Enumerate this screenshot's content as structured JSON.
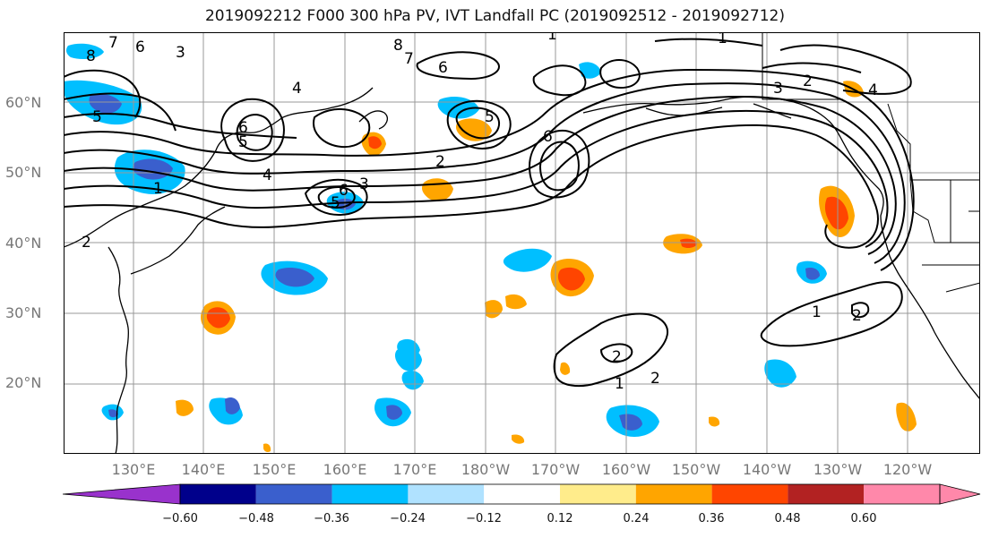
{
  "title": "2019092212 F000 300 hPa PV, IVT Landfall PC (2019092512 - 2019092712)",
  "lat_labels": [
    "20°N",
    "30°N",
    "40°N",
    "50°N",
    "60°N"
  ],
  "lon_labels": [
    "130°E",
    "140°E",
    "150°E",
    "160°E",
    "170°E",
    "180°W",
    "170°W",
    "160°W",
    "150°W",
    "140°W",
    "130°W",
    "120°W"
  ],
  "colorbar": {
    "colors": [
      "#9932CC",
      "#00008B",
      "#3A5FCD",
      "#00BFFF",
      "#B0E2FF",
      "#FFFFFF",
      "#FFEC8B",
      "#FFA500",
      "#FF4500",
      "#B22222",
      "#FF88AA"
    ],
    "ticks": [
      "−0.60",
      "−0.48",
      "−0.36",
      "−0.24",
      "−0.12",
      "0.12",
      "0.24",
      "0.36",
      "0.48",
      "0.60"
    ]
  },
  "contour_labels": [
    {
      "text": "7"
    },
    {
      "text": "8"
    },
    {
      "text": "6"
    },
    {
      "text": "5"
    },
    {
      "text": "4"
    },
    {
      "text": "3"
    },
    {
      "text": "2"
    },
    {
      "text": "1"
    },
    {
      "text": "5"
    },
    {
      "text": "6"
    },
    {
      "text": "4"
    },
    {
      "text": "2"
    },
    {
      "text": "6"
    },
    {
      "text": "5"
    },
    {
      "text": "3"
    },
    {
      "text": "7"
    },
    {
      "text": "6"
    },
    {
      "text": "8"
    },
    {
      "text": "6"
    },
    {
      "text": "5"
    },
    {
      "text": "3"
    },
    {
      "text": "2"
    },
    {
      "text": "4"
    },
    {
      "text": "1"
    },
    {
      "text": "2"
    },
    {
      "text": "1"
    },
    {
      "text": "2"
    },
    {
      "text": "1"
    },
    {
      "text": "2"
    },
    {
      "text": "1"
    }
  ]
}
